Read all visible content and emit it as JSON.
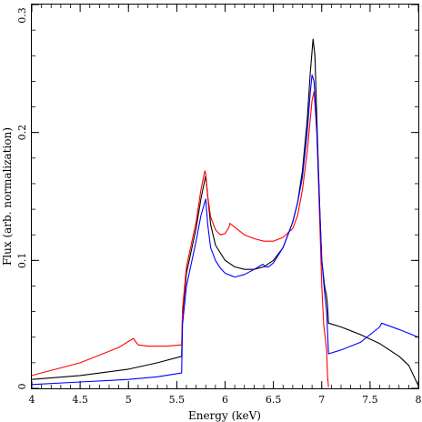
{
  "chart_data": {
    "type": "line",
    "xlabel": "Energy (keV)",
    "ylabel": "Flux (arb. normalization)",
    "xlim": [
      4,
      8
    ],
    "ylim": [
      0,
      0.3
    ],
    "x_ticks": [
      4,
      4.5,
      5,
      5.5,
      6,
      6.5,
      7,
      7.5,
      8
    ],
    "x_tick_labels": [
      "4",
      "4.5",
      "5",
      "5.5",
      "6",
      "6.5",
      "7",
      "7.5",
      "8"
    ],
    "y_ticks": [
      0,
      0.1,
      0.2,
      0.3
    ],
    "y_tick_labels": [
      "0",
      "0.1",
      "0.2",
      "0.3"
    ],
    "grid": false,
    "legend": "none",
    "series": [
      {
        "color": "#000000",
        "x": [
          4.0,
          4.5,
          5.0,
          5.3,
          5.55,
          5.56,
          5.6,
          5.7,
          5.75,
          5.79,
          5.8,
          5.82,
          5.85,
          5.9,
          6.0,
          6.1,
          6.2,
          6.3,
          6.4,
          6.5,
          6.6,
          6.7,
          6.75,
          6.8,
          6.85,
          6.88,
          6.91,
          6.93,
          6.95,
          6.98,
          7.0,
          7.03,
          7.05,
          7.06,
          7.07,
          7.2,
          7.4,
          7.6,
          7.8,
          7.9,
          8.0
        ],
        "y": [
          0.007,
          0.01,
          0.015,
          0.02,
          0.025,
          0.058,
          0.09,
          0.125,
          0.148,
          0.163,
          0.166,
          0.15,
          0.128,
          0.112,
          0.1,
          0.095,
          0.093,
          0.093,
          0.095,
          0.1,
          0.11,
          0.13,
          0.145,
          0.17,
          0.21,
          0.245,
          0.273,
          0.26,
          0.21,
          0.14,
          0.1,
          0.08,
          0.072,
          0.065,
          0.051,
          0.048,
          0.042,
          0.035,
          0.025,
          0.018,
          0.002
        ]
      },
      {
        "color": "#ff0000",
        "x": [
          4.0,
          4.5,
          4.9,
          5.05,
          5.07,
          5.1,
          5.2,
          5.4,
          5.55,
          5.56,
          5.6,
          5.7,
          5.75,
          5.79,
          5.8,
          5.82,
          5.85,
          5.9,
          5.95,
          6.0,
          6.04,
          6.05,
          6.1,
          6.2,
          6.3,
          6.4,
          6.5,
          6.6,
          6.7,
          6.75,
          6.8,
          6.85,
          6.9,
          6.92,
          6.95,
          6.98,
          7.0,
          7.02,
          7.05,
          7.06,
          7.07
        ],
        "y": [
          0.01,
          0.02,
          0.032,
          0.039,
          0.037,
          0.034,
          0.033,
          0.033,
          0.034,
          0.062,
          0.095,
          0.13,
          0.155,
          0.17,
          0.168,
          0.15,
          0.134,
          0.124,
          0.12,
          0.121,
          0.126,
          0.129,
          0.126,
          0.12,
          0.117,
          0.115,
          0.115,
          0.118,
          0.125,
          0.135,
          0.155,
          0.185,
          0.225,
          0.232,
          0.2,
          0.13,
          0.08,
          0.05,
          0.03,
          0.01,
          0.001
        ]
      },
      {
        "color": "#0000ff",
        "x": [
          4.0,
          4.5,
          5.0,
          5.3,
          5.55,
          5.56,
          5.6,
          5.7,
          5.75,
          5.8,
          5.82,
          5.85,
          5.9,
          5.95,
          6.0,
          6.1,
          6.2,
          6.3,
          6.39,
          6.42,
          6.45,
          6.5,
          6.6,
          6.7,
          6.75,
          6.8,
          6.85,
          6.88,
          6.9,
          6.92,
          6.95,
          6.98,
          7.0,
          7.03,
          7.05,
          7.06,
          7.07,
          7.2,
          7.4,
          7.6,
          7.62,
          7.8,
          8.0
        ],
        "y": [
          0.003,
          0.005,
          0.007,
          0.009,
          0.012,
          0.05,
          0.08,
          0.115,
          0.135,
          0.148,
          0.128,
          0.11,
          0.1,
          0.094,
          0.09,
          0.087,
          0.089,
          0.093,
          0.097,
          0.095,
          0.095,
          0.098,
          0.11,
          0.13,
          0.145,
          0.165,
          0.2,
          0.23,
          0.245,
          0.24,
          0.2,
          0.14,
          0.1,
          0.075,
          0.06,
          0.045,
          0.027,
          0.03,
          0.036,
          0.048,
          0.051,
          0.046,
          0.04
        ]
      }
    ]
  }
}
